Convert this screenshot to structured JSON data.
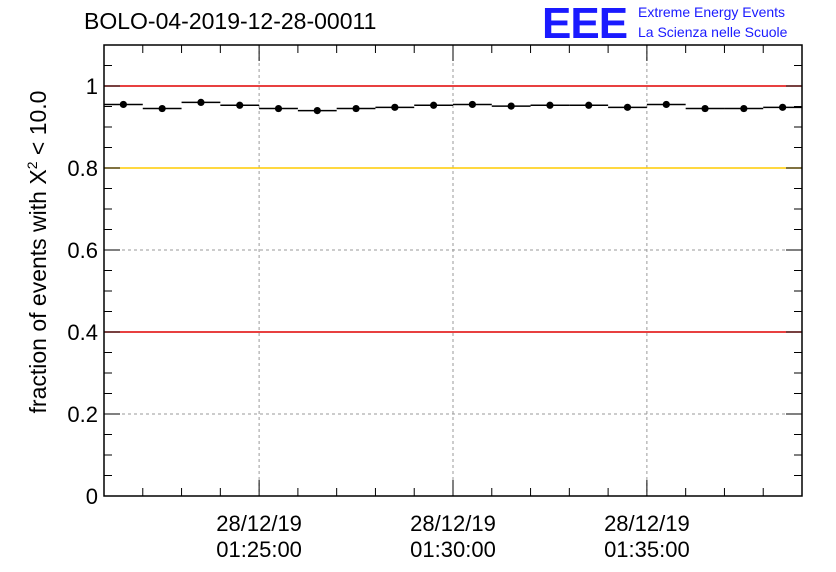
{
  "title": "BOLO-04-2019-12-28-00011",
  "logo": {
    "mark": "EEE",
    "line1": "Extreme Energy Events",
    "line2": "La Scienza nelle Scuole",
    "color": "#1a1aff"
  },
  "ylabel": {
    "prefix": "fraction of events with ",
    "symbol": "X",
    "sup": "2",
    "suffix": " < 10.0"
  },
  "chart_data": {
    "type": "scatter",
    "title": "BOLO-04-2019-12-28-00011",
    "xlabel": "",
    "ylabel": "fraction of events with X^2 < 10.0",
    "ylim": [
      0,
      1.1
    ],
    "yticks": [
      0,
      0.2,
      0.4,
      0.6,
      0.8,
      1
    ],
    "ytick_labels": [
      "0",
      "0.2",
      "0.4",
      "0.6",
      "0.8",
      "1"
    ],
    "xlim_minutes": [
      -4,
      14
    ],
    "xticks_minutes": [
      0,
      5,
      10
    ],
    "xtick_labels": [
      {
        "date": "28/12/19",
        "time": "01:25:00"
      },
      {
        "date": "28/12/19",
        "time": "01:30:00"
      },
      {
        "date": "28/12/19",
        "time": "01:35:00"
      }
    ],
    "x_minutes": [
      -3.5,
      -2.5,
      -1.5,
      -0.5,
      0.5,
      1.5,
      2.5,
      3.5,
      4.5,
      5.5,
      6.5,
      7.5,
      8.5,
      9.5,
      10.5,
      11.5,
      12.5,
      13.5
    ],
    "bin_width_minutes": 1,
    "values": [
      0.955,
      0.945,
      0.96,
      0.953,
      0.945,
      0.94,
      0.945,
      0.948,
      0.953,
      0.955,
      0.951,
      0.953,
      0.953,
      0.948,
      0.955,
      0.945,
      0.945,
      0.948
    ],
    "reference_lines": [
      {
        "y": 1.0,
        "color": "#e00000"
      },
      {
        "y": 0.8,
        "color": "#ffcc00"
      },
      {
        "y": 0.4,
        "color": "#e00000"
      }
    ],
    "grid": true
  }
}
